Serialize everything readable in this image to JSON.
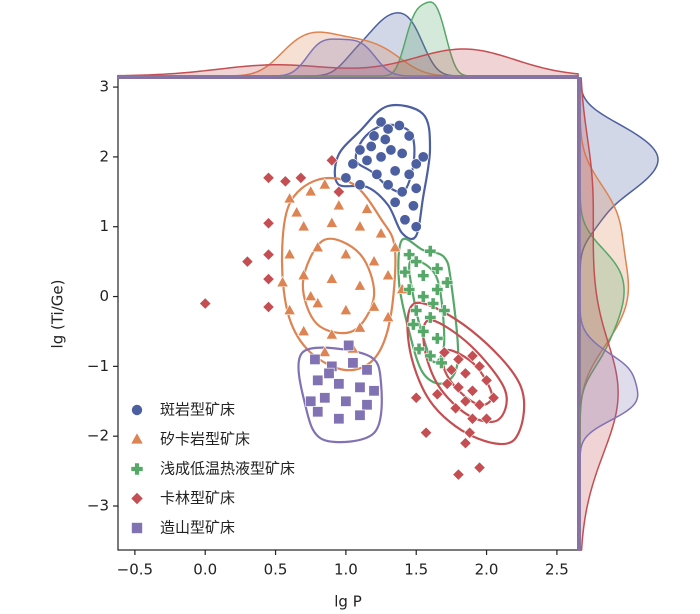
{
  "chart_data": {
    "type": "scatter",
    "xlabel": "lg P",
    "ylabel": "lg (Ti/Ge)",
    "xlim": [
      -0.62,
      2.65
    ],
    "ylim": [
      -3.63,
      3.13
    ],
    "xticks": [
      {
        "value": -0.5,
        "label": "−0.5"
      },
      {
        "value": 0,
        "label": "0.0"
      },
      {
        "value": 0.5,
        "label": "0.5"
      },
      {
        "value": 1,
        "label": "1.0"
      },
      {
        "value": 1.5,
        "label": "1.5"
      },
      {
        "value": 2,
        "label": "2.0"
      },
      {
        "value": 2.5,
        "label": "2.5"
      }
    ],
    "yticks": [
      {
        "value": -3,
        "label": "−3"
      },
      {
        "value": -2,
        "label": "−2"
      },
      {
        "value": -1,
        "label": "−1"
      },
      0,
      1,
      2,
      3
    ],
    "legend": "lower left",
    "marginals": true,
    "series": [
      {
        "name": "斑岩型矿床",
        "color": "#4c5fa0",
        "marker": "circle",
        "x": [
          1.25,
          1.3,
          1.38,
          1.45,
          1.2,
          1.1,
          1.05,
          1.15,
          1.25,
          1.32,
          1.4,
          1.5,
          1.45,
          1.35,
          1.22,
          1.1,
          1.3,
          1.4,
          1.48,
          1.42,
          1.5,
          1.55,
          1.28,
          1.18,
          1.0,
          1.35,
          1.5
        ],
        "y": [
          2.5,
          2.4,
          2.45,
          2.3,
          2.3,
          2.1,
          1.9,
          1.95,
          2.0,
          2.1,
          2.05,
          1.9,
          1.75,
          1.8,
          1.75,
          1.6,
          1.6,
          1.5,
          1.3,
          1.1,
          1.0,
          2.0,
          2.25,
          2.15,
          1.7,
          1.35,
          1.55
        ]
      },
      {
        "name": "矽卡岩型矿床",
        "color": "#dd8452",
        "marker": "triangle",
        "x": [
          0.6,
          0.75,
          0.85,
          0.95,
          0.7,
          0.9,
          1.1,
          1.25,
          0.6,
          0.8,
          1.0,
          1.2,
          1.35,
          0.55,
          0.7,
          0.9,
          1.1,
          1.3,
          0.6,
          0.8,
          1.0,
          1.2,
          0.7,
          0.9,
          1.1,
          1.3,
          0.85,
          1.05,
          0.65,
          1.15,
          0.75,
          1.4
        ],
        "y": [
          1.4,
          1.5,
          1.6,
          1.3,
          1.0,
          1.05,
          1.0,
          0.9,
          0.6,
          0.7,
          0.6,
          0.5,
          0.7,
          0.2,
          0.3,
          0.25,
          0.15,
          0.3,
          -0.2,
          -0.1,
          -0.2,
          -0.15,
          -0.5,
          -0.55,
          -0.45,
          -0.3,
          -0.8,
          -0.75,
          1.2,
          1.25,
          0.0,
          0.1
        ]
      },
      {
        "name": "浅成低温热液型矿床",
        "color": "#55a868",
        "marker": "plus",
        "x": [
          1.45,
          1.5,
          1.6,
          1.55,
          1.65,
          1.45,
          1.55,
          1.65,
          1.5,
          1.6,
          1.7,
          1.55,
          1.65,
          1.6,
          1.52,
          1.68,
          1.42,
          1.72,
          1.62,
          1.48
        ],
        "y": [
          0.6,
          0.5,
          0.65,
          0.3,
          0.4,
          0.1,
          0.0,
          0.1,
          -0.2,
          -0.3,
          -0.2,
          -0.5,
          -0.6,
          -0.85,
          -0.75,
          -0.95,
          0.35,
          0.2,
          -0.1,
          -0.4
        ]
      },
      {
        "name": "卡林型矿床",
        "color": "#c44e52",
        "marker": "diamond",
        "x": [
          1.7,
          1.8,
          1.9,
          1.75,
          1.85,
          1.95,
          2.0,
          1.8,
          1.9,
          1.72,
          1.85,
          1.95,
          2.05,
          1.78,
          1.9,
          1.65,
          2.0,
          1.88,
          0,
          0.3,
          0.45,
          0.45,
          0.45,
          0.45,
          0.45,
          0.57,
          0.68,
          0.9,
          0.95,
          1.8,
          1.95,
          1.85,
          1.57,
          1.5
        ],
        "y": [
          -0.8,
          -0.9,
          -0.85,
          -1.05,
          -1.1,
          -1.0,
          -1.2,
          -1.3,
          -1.35,
          -1.25,
          -1.5,
          -1.55,
          -1.45,
          -1.6,
          -1.75,
          -1.4,
          -1.75,
          -1.95,
          -0.1,
          0.5,
          1.7,
          1.05,
          0.6,
          0.25,
          -0.15,
          1.65,
          1.7,
          1.95,
          1.5,
          -2.55,
          -2.45,
          -2.1,
          -1.95,
          -1.45
        ]
      },
      {
        "name": "造山型矿床",
        "color": "#8172b3",
        "marker": "square",
        "x": [
          0.78,
          0.9,
          1.05,
          1.15,
          0.8,
          0.95,
          1.1,
          0.85,
          1.0,
          1.15,
          0.8,
          0.95,
          1.1,
          0.88,
          1.02,
          0.75,
          1.2
        ],
        "y": [
          -0.9,
          -1.0,
          -0.95,
          -1.05,
          -1.2,
          -1.25,
          -1.3,
          -1.45,
          -1.5,
          -1.55,
          -1.65,
          -1.75,
          -1.7,
          -1.1,
          -0.7,
          -1.5,
          -1.35
        ]
      }
    ]
  }
}
